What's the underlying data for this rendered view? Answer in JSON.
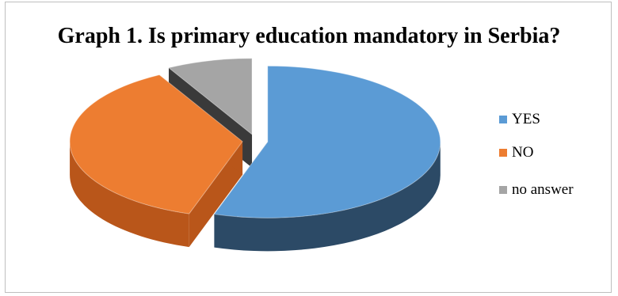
{
  "chart_data": {
    "type": "pie",
    "title": "Graph 1. Is primary education mandatory in Serbia?",
    "slices": [
      {
        "label": "YES",
        "value": 55,
        "color": "#5b9bd5",
        "side": "#2c4a66"
      },
      {
        "label": "NO",
        "value": 37,
        "color": "#ed7d31",
        "side": "#b9561a"
      },
      {
        "label": "no answer",
        "value": 8,
        "color": "#a5a5a5",
        "side": "#3a3a3a"
      }
    ],
    "legend_position": "right",
    "style": "3d-exploded"
  }
}
